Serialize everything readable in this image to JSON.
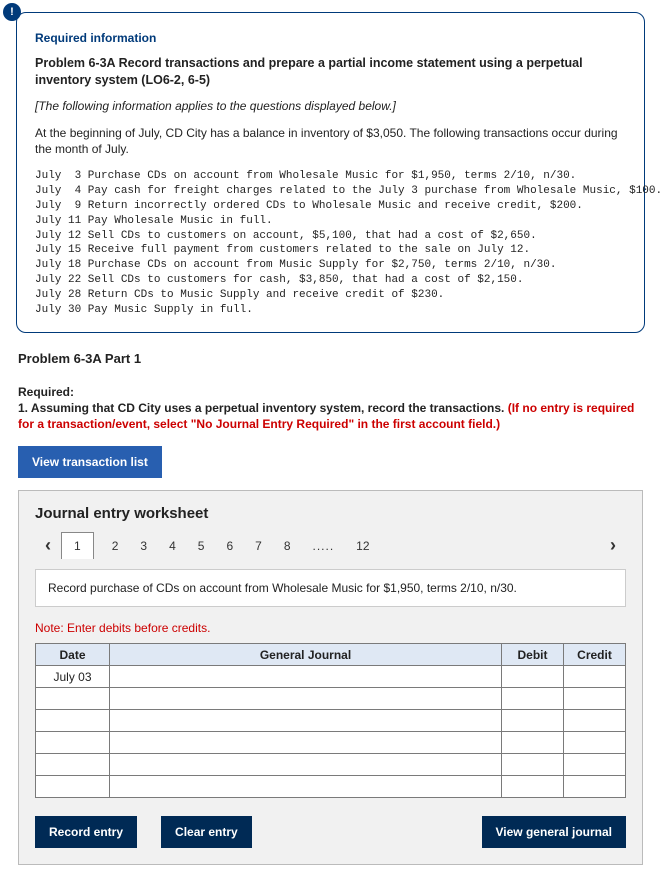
{
  "info_icon": "!",
  "card": {
    "required_info": "Required information",
    "problem_title": "Problem 6-3A Record transactions and prepare a partial income statement using a perpetual inventory system (LO6-2, 6-5)",
    "italic_note": "[The following information applies to the questions displayed below.]",
    "intro": "At the beginning of July, CD City has a balance in inventory of $3,050. The following transactions occur during the month of July.",
    "transactions": "July  3 Purchase CDs on account from Wholesale Music for $1,950, terms 2/10, n/30.\nJuly  4 Pay cash for freight charges related to the July 3 purchase from Wholesale Music, $100.\nJuly  9 Return incorrectly ordered CDs to Wholesale Music and receive credit, $200.\nJuly 11 Pay Wholesale Music in full.\nJuly 12 Sell CDs to customers on account, $5,100, that had a cost of $2,650.\nJuly 15 Receive full payment from customers related to the sale on July 12.\nJuly 18 Purchase CDs on account from Music Supply for $2,750, terms 2/10, n/30.\nJuly 22 Sell CDs to customers for cash, $3,850, that had a cost of $2,150.\nJuly 28 Return CDs to Music Supply and receive credit of $230.\nJuly 30 Pay Music Supply in full."
  },
  "part_title": "Problem 6-3A Part 1",
  "req": {
    "label": "Required:",
    "line": "1. Assuming that CD City uses a perpetual inventory system, record the transactions. ",
    "red": "(If no entry is required for a transaction/event, select \"No Journal Entry Required\" in the first account field.)"
  },
  "buttons": {
    "view_list": "View transaction list",
    "record": "Record entry",
    "clear": "Clear entry",
    "view_gj": "View general journal"
  },
  "worksheet": {
    "title": "Journal entry worksheet",
    "tabs": [
      "1",
      "2",
      "3",
      "4",
      "5",
      "6",
      "7",
      "8",
      ".....",
      "12"
    ],
    "active_tab_index": 0,
    "desc": "Record purchase of CDs on account from Wholesale Music for $1,950, terms 2/10, n/30.",
    "note": "Note: Enter debits before credits.",
    "headers": {
      "date": "Date",
      "gj": "General Journal",
      "debit": "Debit",
      "credit": "Credit"
    },
    "rows": [
      {
        "date": "July 03",
        "gj": "",
        "debit": "",
        "credit": ""
      },
      {
        "date": "",
        "gj": "",
        "debit": "",
        "credit": ""
      },
      {
        "date": "",
        "gj": "",
        "debit": "",
        "credit": ""
      },
      {
        "date": "",
        "gj": "",
        "debit": "",
        "credit": ""
      },
      {
        "date": "",
        "gj": "",
        "debit": "",
        "credit": ""
      },
      {
        "date": "",
        "gj": "",
        "debit": "",
        "credit": ""
      }
    ]
  },
  "colors": {
    "brand_blue": "#003a7a",
    "button_blue": "#285fb0",
    "dark_blue": "#002a55",
    "panel_bg": "#f1f1f1",
    "th_bg": "#dfe8f4",
    "red": "#cc0000",
    "border": "#7a7a7a"
  }
}
